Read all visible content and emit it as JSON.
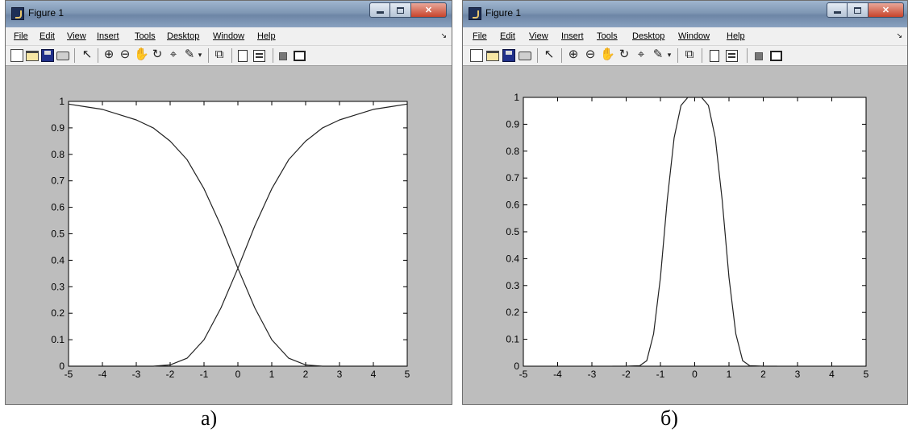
{
  "windows": [
    {
      "title": "Figure 1",
      "menu": [
        "File",
        "Edit",
        "View",
        "Insert",
        "Tools",
        "Desktop",
        "Window",
        "Help"
      ],
      "caption": "а)"
    },
    {
      "title": "Figure 1",
      "menu": [
        "File",
        "Edit",
        "View",
        "Insert",
        "Tools",
        "Desktop",
        "Window",
        "Help"
      ],
      "caption": "б)"
    }
  ],
  "chart_data": [
    {
      "type": "line",
      "xlim": [
        -5,
        5
      ],
      "ylim": [
        0,
        1
      ],
      "x_ticks": [
        "-5",
        "-4",
        "-3",
        "-2",
        "-1",
        "0",
        "1",
        "2",
        "3",
        "4",
        "5"
      ],
      "y_ticks": [
        "0",
        "0.1",
        "0.2",
        "0.3",
        "0.4",
        "0.5",
        "0.6",
        "0.7",
        "0.8",
        "0.9",
        "1"
      ],
      "grid": false,
      "series": [
        {
          "x": [
            -5,
            -4.5,
            -4,
            -3.5,
            -3,
            -2.5,
            -2,
            -1.5,
            -1,
            -0.5,
            0,
            0.5,
            1,
            1.5,
            2,
            2.5,
            3,
            3.5,
            4,
            4.5,
            5
          ],
          "y": [
            0.99,
            0.98,
            0.97,
            0.95,
            0.93,
            0.9,
            0.85,
            0.78,
            0.67,
            0.53,
            0.37,
            0.22,
            0.1,
            0.03,
            0.005,
            0,
            0,
            0,
            0,
            0,
            0
          ]
        },
        {
          "x": [
            -5,
            -4.5,
            -4,
            -3.5,
            -3,
            -2.5,
            -2,
            -1.5,
            -1,
            -0.5,
            0,
            0.5,
            1,
            1.5,
            2,
            2.5,
            3,
            3.5,
            4,
            4.5,
            5
          ],
          "y": [
            0,
            0,
            0,
            0,
            0,
            0,
            0.005,
            0.03,
            0.1,
            0.22,
            0.37,
            0.53,
            0.67,
            0.78,
            0.85,
            0.9,
            0.93,
            0.95,
            0.97,
            0.98,
            0.99
          ]
        }
      ]
    },
    {
      "type": "line",
      "xlim": [
        -5,
        5
      ],
      "ylim": [
        0,
        1
      ],
      "x_ticks": [
        "-5",
        "-4",
        "-3",
        "-2",
        "-1",
        "0",
        "1",
        "2",
        "3",
        "4",
        "5"
      ],
      "y_ticks": [
        "0",
        "0.1",
        "0.2",
        "0.3",
        "0.4",
        "0.5",
        "0.6",
        "0.7",
        "0.8",
        "0.9",
        "1"
      ],
      "grid": false,
      "series": [
        {
          "x": [
            -2.4,
            -2,
            -1.6,
            -1.4,
            -1.2,
            -1,
            -0.8,
            -0.6,
            -0.4,
            -0.2,
            0,
            0.2,
            0.4,
            0.6,
            0.8,
            1,
            1.2,
            1.4,
            1.6,
            2,
            2.4
          ],
          "y": [
            0,
            0,
            0.002,
            0.02,
            0.12,
            0.33,
            0.62,
            0.85,
            0.97,
            1,
            1,
            1,
            0.97,
            0.85,
            0.62,
            0.33,
            0.12,
            0.02,
            0.002,
            0,
            0
          ]
        }
      ]
    }
  ]
}
